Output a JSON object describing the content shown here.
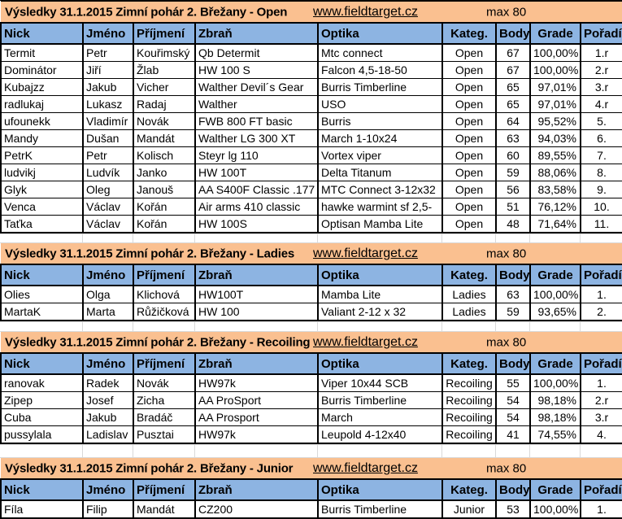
{
  "colors": {
    "title_bg": "#FAC090",
    "header_bg": "#8DB4E2",
    "grid_line": "#D9D9D9",
    "text": "#000000"
  },
  "column_keys": [
    "nick",
    "jmeno",
    "prijmeni",
    "zbran",
    "optika",
    "kateg",
    "body",
    "grade",
    "poradi"
  ],
  "columns": [
    "Nick",
    "Jméno",
    "Příjmení",
    "Zbraň",
    "Optika",
    "Kateg.",
    "Body",
    "Grade",
    "Pořadí"
  ],
  "sections": [
    {
      "id": "open",
      "title": "Výsledky 31.1.2015 Zimní pohár 2. Břežany - Open",
      "link": "www.fieldtarget.cz",
      "max_label": "max 80",
      "rows": [
        [
          "Termit",
          "Petr",
          "Kouřimský",
          "Qb Determit",
          "Mtc connect",
          "Open",
          "67",
          "100,00%",
          "1.r"
        ],
        [
          "Dominátor",
          "Jiří",
          "Žlab",
          "HW 100 S",
          "Falcon 4,5-18-50",
          "Open",
          "67",
          "100,00%",
          "2.r"
        ],
        [
          "Kubajzz",
          "Jakub",
          "Vicher",
          "Walther Devil´s Gear",
          "Burris Timberline",
          "Open",
          "65",
          "97,01%",
          "3.r"
        ],
        [
          "radlukaj",
          "Lukasz",
          "Radaj",
          "Walther",
          "USO",
          "Open",
          "65",
          "97,01%",
          "4.r"
        ],
        [
          "ufounekk",
          "Vladimír",
          "Novák",
          "FWB 800 FT basic",
          "Burris",
          "Open",
          "64",
          "95,52%",
          "5."
        ],
        [
          "Mandy",
          "Dušan",
          "Mandát",
          "Walther LG 300 XT",
          "March 1-10x24",
          "Open",
          "63",
          "94,03%",
          "6."
        ],
        [
          "PetrK",
          "Petr",
          "Kolisch",
          "Steyr lg 110",
          "Vortex viper",
          "Open",
          "60",
          "89,55%",
          "7."
        ],
        [
          "ludvikj",
          "Ludvík",
          "Janko",
          "HW 100T",
          "Delta Titanum",
          "Open",
          "59",
          "88,06%",
          "8."
        ],
        [
          "Glyk",
          "Oleg",
          "Janouš",
          "AA S400F Classic .177",
          "MTC Connect 3-12x32",
          "Open",
          "56",
          "83,58%",
          "9."
        ],
        [
          "Venca",
          "Václav",
          "Kořán",
          "Air arms 410 classic",
          "hawke warmint sf 2,5-",
          "Open",
          "51",
          "76,12%",
          "10."
        ],
        [
          "Taťka",
          "Václav",
          "Kořán",
          "HW 100S",
          "Optisan Mamba Lite",
          "Open",
          "48",
          "71,64%",
          "11."
        ]
      ]
    },
    {
      "id": "ladies",
      "title": "Výsledky 31.1.2015 Zimní pohár 2. Břežany - Ladies",
      "link": "www.fieldtarget.cz",
      "max_label": "max 80",
      "rows": [
        [
          "Olies",
          "Olga",
          "Klichová",
          "HW100T",
          "Mamba Lite",
          "Ladies",
          "63",
          "100,00%",
          "1."
        ],
        [
          "MartaK",
          "Marta",
          "Růžičková",
          "HW 100",
          "Valiant 2-12 x 32",
          "Ladies",
          "59",
          "93,65%",
          "2."
        ]
      ]
    },
    {
      "id": "recoiling",
      "title": "Výsledky 31.1.2015 Zimní pohár 2. Břežany - Recoiling",
      "link": "www.fieldtarget.cz",
      "max_label": "max 80",
      "rows": [
        [
          "ranovak",
          "Radek",
          "Novák",
          "HW97k",
          "Viper 10x44 SCB",
          "Recoiling",
          "55",
          "100,00%",
          "1."
        ],
        [
          "Zipep",
          "Josef",
          "Zicha",
          "AA ProSport",
          "Burris Timberline",
          "Recoiling",
          "54",
          "98,18%",
          "2.r"
        ],
        [
          "Cuba",
          "Jakub",
          "Bradáč",
          "AA Prosport",
          "March",
          "Recoiling",
          "54",
          "98,18%",
          "3.r"
        ],
        [
          "pussylala",
          "Ladislav",
          "Pusztai",
          "HW97k",
          "Leupold 4-12x40",
          "Recoiling",
          "41",
          "74,55%",
          "4."
        ]
      ]
    },
    {
      "id": "junior",
      "title": "Výsledky 31.1.2015 Zimní pohár 2. Břežany - Junior",
      "link": "www.fieldtarget.cz",
      "max_label": "max 80",
      "rows": [
        [
          "Fíla",
          "Filip",
          "Mandát",
          "CZ200",
          "Burris Timberline",
          "Junior",
          "53",
          "100,00%",
          "1."
        ]
      ]
    }
  ]
}
